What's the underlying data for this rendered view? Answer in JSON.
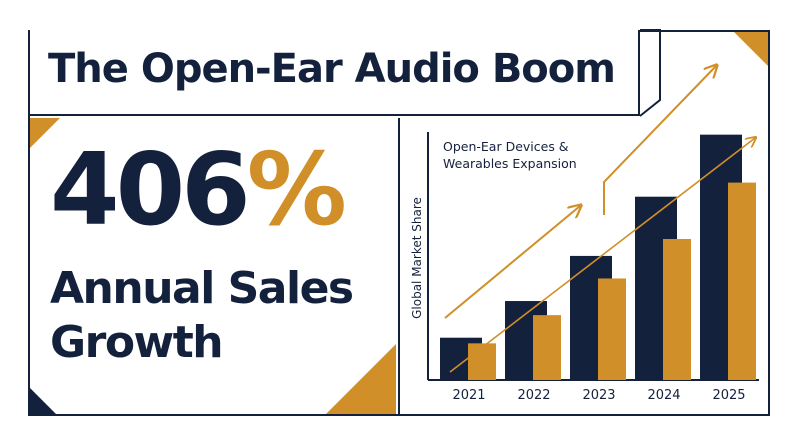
{
  "title": "The Open-Ear Audio Boom",
  "headline": {
    "number": "406",
    "sign": "%"
  },
  "subheadline": {
    "line1": "Annual Sales",
    "line2": "Growth"
  },
  "colors": {
    "navy": "#14213d",
    "gold": "#d08f28",
    "background": "#ffffff"
  },
  "chart_data": {
    "type": "bar",
    "title_line1": "Open-Ear Devices &",
    "title_line2": "Wearables Expansion",
    "ylabel": "Global Market Share",
    "xlabel": "",
    "categories": [
      "2021",
      "2022",
      "2023",
      "2024",
      "2025"
    ],
    "series": [
      {
        "color": "#14213d",
        "values": [
          15,
          28,
          44,
          65,
          87
        ]
      },
      {
        "color": "#d08f28",
        "values": [
          13,
          23,
          36,
          50,
          70
        ]
      }
    ],
    "ylim": [
      0,
      100
    ],
    "grid": false,
    "legend": "none",
    "trend_arrows": true
  }
}
